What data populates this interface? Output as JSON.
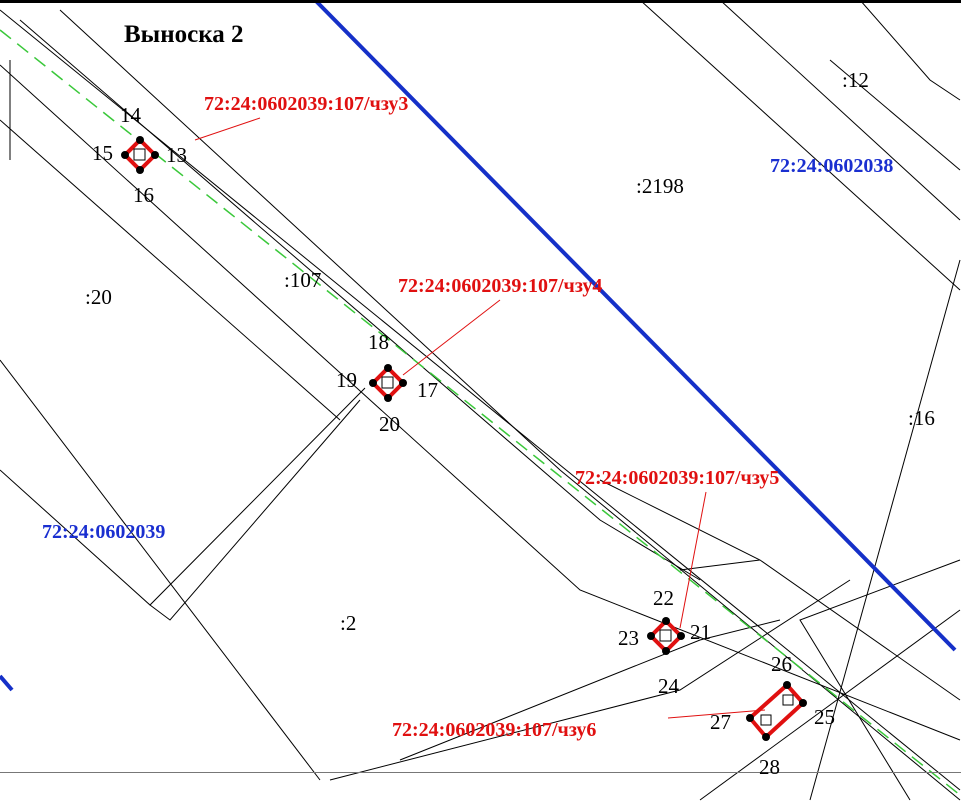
{
  "title": "Выноска 2",
  "quarters": [
    "72:24:0602038",
    "72:24:0602039"
  ],
  "parcels": [
    ":12",
    ":2198",
    ":107",
    ":20",
    ":16",
    ":2"
  ],
  "zones": [
    {
      "label": "72:24:0602039:107/чзу3",
      "points": [
        "13",
        "14",
        "15",
        "16"
      ]
    },
    {
      "label": "72:24:0602039:107/чзу4",
      "points": [
        "17",
        "18",
        "19",
        "20"
      ]
    },
    {
      "label": "72:24:0602039:107/чзу5",
      "points": [
        "21",
        "22",
        "23",
        "24"
      ]
    },
    {
      "label": "72:24:0602039:107/чзу6",
      "points": [
        "25",
        "26",
        "27",
        "28"
      ]
    }
  ]
}
